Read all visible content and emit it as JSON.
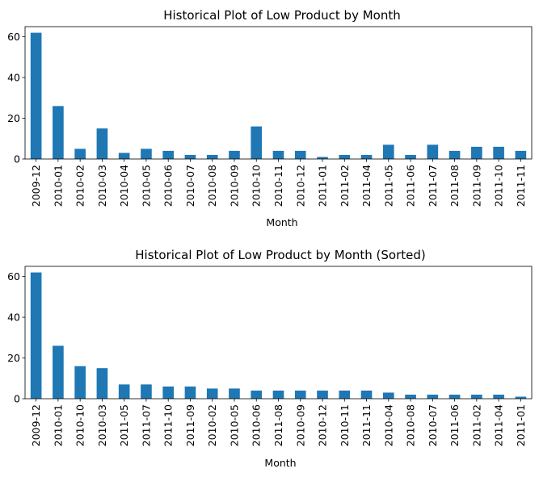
{
  "chart_data": [
    {
      "type": "bar",
      "title": "Historical Plot of Low Product by Month",
      "xlabel": "Month",
      "ylabel": "",
      "ylim": [
        0,
        65
      ],
      "yticks": [
        0,
        20,
        40,
        60
      ],
      "categories": [
        "2009-12",
        "2010-01",
        "2010-02",
        "2010-03",
        "2010-04",
        "2010-05",
        "2010-06",
        "2010-07",
        "2010-08",
        "2010-09",
        "2010-10",
        "2010-11",
        "2010-12",
        "2011-01",
        "2011-02",
        "2011-04",
        "2011-05",
        "2011-06",
        "2011-07",
        "2011-08",
        "2011-09",
        "2011-10",
        "2011-11"
      ],
      "values": [
        62,
        26,
        5,
        15,
        3,
        5,
        4,
        2,
        2,
        4,
        16,
        4,
        4,
        1,
        2,
        2,
        7,
        2,
        7,
        4,
        6,
        6,
        4
      ],
      "color": "#1f77b4",
      "grid": false,
      "legend": false
    },
    {
      "type": "bar",
      "title": "Historical Plot of Low Product by Month (Sorted)",
      "xlabel": "Month",
      "ylabel": "",
      "ylim": [
        0,
        65
      ],
      "yticks": [
        0,
        20,
        40,
        60
      ],
      "categories": [
        "2009-12",
        "2010-01",
        "2010-10",
        "2010-03",
        "2011-05",
        "2011-07",
        "2011-10",
        "2011-09",
        "2010-02",
        "2010-05",
        "2010-06",
        "2011-08",
        "2010-09",
        "2010-12",
        "2010-11",
        "2011-11",
        "2010-04",
        "2010-08",
        "2010-07",
        "2011-06",
        "2011-02",
        "2011-04",
        "2011-01"
      ],
      "values": [
        62,
        26,
        16,
        15,
        7,
        7,
        6,
        6,
        5,
        5,
        4,
        4,
        4,
        4,
        4,
        4,
        3,
        2,
        2,
        2,
        2,
        2,
        1
      ],
      "color": "#1f77b4",
      "grid": false,
      "legend": false
    }
  ]
}
